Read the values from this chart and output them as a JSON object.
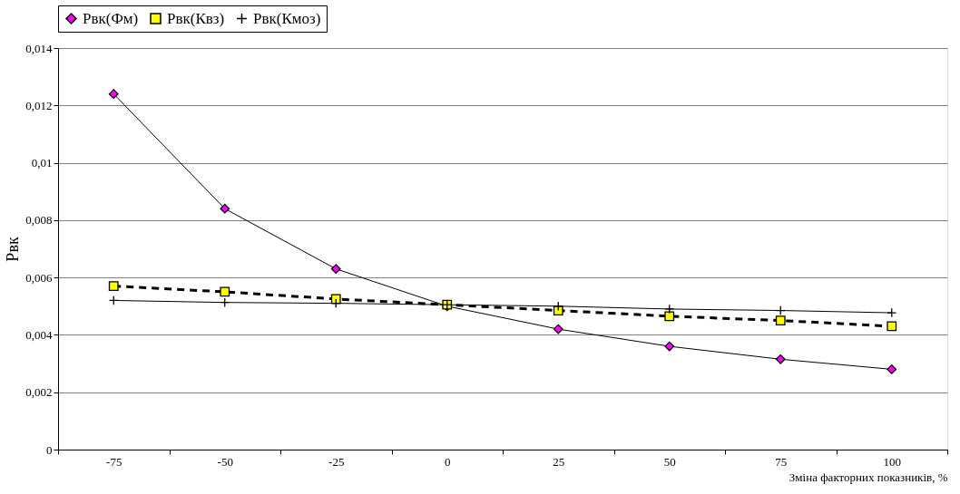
{
  "chart_data": {
    "type": "line",
    "ylabel": "Рвк",
    "xlabel": "Зміна факторних показників, %",
    "categories": [
      "-75",
      "-50",
      "-25",
      "0",
      "25",
      "50",
      "75",
      "100"
    ],
    "series": [
      {
        "name": "Рвк(Фм)",
        "color": "#ff00ff",
        "marker": "diamond",
        "line_style": "solid",
        "values": [
          0.0124,
          0.0084,
          0.0063,
          0.005,
          0.0042,
          0.0036,
          0.00315,
          0.0028
        ]
      },
      {
        "name": "Рвк(Квз)",
        "color": "#ffff00",
        "marker": "square",
        "line_style": "dashed",
        "values": [
          0.0057,
          0.0055,
          0.00525,
          0.00505,
          0.00485,
          0.00465,
          0.0045,
          0.0043
        ]
      },
      {
        "name": "Рвк(Кмоз)",
        "color": "#000000",
        "marker": "cross",
        "line_style": "solid",
        "values": [
          0.0052,
          0.00513,
          0.0051,
          0.00505,
          0.005,
          0.0049,
          0.00485,
          0.00477
        ]
      }
    ],
    "ylim": [
      0,
      0.014
    ],
    "yticks": [
      {
        "value": 0,
        "label": "0"
      },
      {
        "value": 0.002,
        "label": "0,002"
      },
      {
        "value": 0.004,
        "label": "0,004"
      },
      {
        "value": 0.006,
        "label": "0,006"
      },
      {
        "value": 0.008,
        "label": "0,008"
      },
      {
        "value": 0.01,
        "label": "0,01"
      },
      {
        "value": 0.012,
        "label": "0,012"
      },
      {
        "value": 0.014,
        "label": "0,014"
      }
    ],
    "grid": "y",
    "legend": "top"
  }
}
